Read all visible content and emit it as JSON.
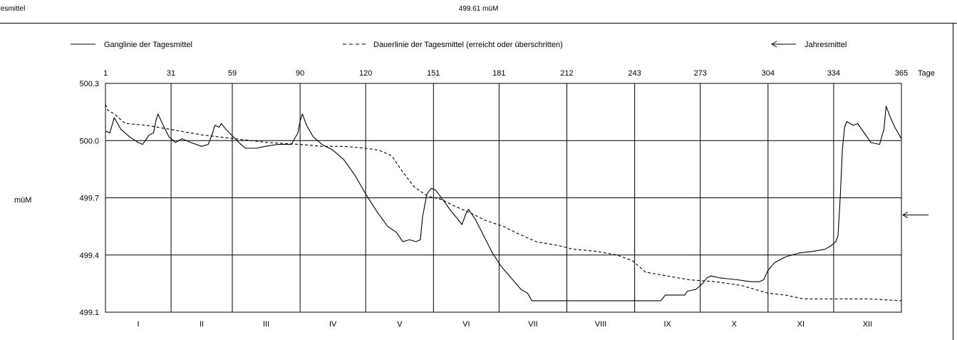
{
  "header": {
    "left_text": "hresmittel",
    "center_text": "499.61 müM"
  },
  "legend": {
    "solid_label": "Ganglinie der Tagesmittel",
    "dashed_label": "Dauerlinie der Tagesmittel (erreicht oder überschritten)",
    "arrow_label": "Jahresmittel"
  },
  "chart_data": {
    "type": "line",
    "ylabel": "müM",
    "x_unit_label": "Tage",
    "xlim": [
      1,
      365
    ],
    "ylim": [
      499.1,
      500.3
    ],
    "y_ticks": [
      499.1,
      499.4,
      499.7,
      500.0,
      500.3
    ],
    "y_tick_labels": [
      "499.1",
      "499.4",
      "499.7",
      "500.0",
      "500.3"
    ],
    "x_ticks": [
      1,
      31,
      59,
      90,
      120,
      151,
      181,
      212,
      243,
      273,
      304,
      334,
      365
    ],
    "x_tick_labels": [
      "1",
      "31",
      "59",
      "90",
      "120",
      "151",
      "181",
      "212",
      "243",
      "273",
      "304",
      "334",
      "365"
    ],
    "month_labels": [
      "I",
      "II",
      "III",
      "IV",
      "V",
      "VI",
      "VII",
      "VIII",
      "IX",
      "X",
      "XI",
      "XII"
    ],
    "grid": true,
    "annual_mean": 499.61,
    "series": [
      {
        "name": "Ganglinie der Tagesmittel",
        "style": "solid",
        "points": [
          [
            1,
            500.05
          ],
          [
            3,
            500.04
          ],
          [
            5,
            500.12
          ],
          [
            8,
            500.06
          ],
          [
            12,
            500.02
          ],
          [
            16,
            499.99
          ],
          [
            18,
            499.98
          ],
          [
            21,
            500.03
          ],
          [
            23,
            500.04
          ],
          [
            24,
            500.1
          ],
          [
            25,
            500.14
          ],
          [
            27,
            500.09
          ],
          [
            30,
            500.02
          ],
          [
            33,
            499.99
          ],
          [
            36,
            500.01
          ],
          [
            40,
            499.99
          ],
          [
            45,
            499.97
          ],
          [
            48,
            499.98
          ],
          [
            50,
            500.04
          ],
          [
            51,
            500.08
          ],
          [
            53,
            500.07
          ],
          [
            54,
            500.09
          ],
          [
            56,
            500.06
          ],
          [
            62,
            499.99
          ],
          [
            65,
            499.96
          ],
          [
            70,
            499.96
          ],
          [
            74,
            499.97
          ],
          [
            80,
            499.98
          ],
          [
            86,
            499.98
          ],
          [
            89,
            500.04
          ],
          [
            90,
            500.1
          ],
          [
            91,
            500.14
          ],
          [
            93,
            500.08
          ],
          [
            96,
            500.02
          ],
          [
            100,
            499.98
          ],
          [
            105,
            499.95
          ],
          [
            110,
            499.9
          ],
          [
            115,
            499.82
          ],
          [
            120,
            499.72
          ],
          [
            125,
            499.63
          ],
          [
            130,
            499.55
          ],
          [
            134,
            499.52
          ],
          [
            137,
            499.47
          ],
          [
            140,
            499.48
          ],
          [
            143,
            499.47
          ],
          [
            145,
            499.48
          ],
          [
            146,
            499.6
          ],
          [
            148,
            499.72
          ],
          [
            150,
            499.75
          ],
          [
            152,
            499.74
          ],
          [
            156,
            499.68
          ],
          [
            159,
            499.63
          ],
          [
            162,
            499.59
          ],
          [
            164,
            499.56
          ],
          [
            166,
            499.62
          ],
          [
            167,
            499.64
          ],
          [
            170,
            499.59
          ],
          [
            174,
            499.5
          ],
          [
            178,
            499.41
          ],
          [
            182,
            499.34
          ],
          [
            185,
            499.3
          ],
          [
            188,
            499.26
          ],
          [
            191,
            499.22
          ],
          [
            194,
            499.2
          ],
          [
            196,
            499.16
          ],
          [
            220,
            499.16
          ],
          [
            240,
            499.16
          ],
          [
            250,
            499.16
          ],
          [
            255,
            499.16
          ],
          [
            257,
            499.19
          ],
          [
            262,
            499.19
          ],
          [
            266,
            499.19
          ],
          [
            267,
            499.21
          ],
          [
            271,
            499.22
          ],
          [
            274,
            499.25
          ],
          [
            276,
            499.28
          ],
          [
            278,
            499.29
          ],
          [
            282,
            499.28
          ],
          [
            290,
            499.27
          ],
          [
            296,
            499.26
          ],
          [
            300,
            499.26
          ],
          [
            302,
            499.27
          ],
          [
            304,
            499.32
          ],
          [
            307,
            499.36
          ],
          [
            312,
            499.39
          ],
          [
            318,
            499.41
          ],
          [
            325,
            499.42
          ],
          [
            330,
            499.43
          ],
          [
            333,
            499.45
          ],
          [
            335,
            499.47
          ],
          [
            336,
            499.5
          ],
          [
            337,
            499.7
          ],
          [
            338,
            499.95
          ],
          [
            339,
            500.07
          ],
          [
            340,
            500.1
          ],
          [
            343,
            500.08
          ],
          [
            345,
            500.09
          ],
          [
            348,
            500.04
          ],
          [
            351,
            499.99
          ],
          [
            355,
            499.98
          ],
          [
            357,
            500.06
          ],
          [
            358,
            500.18
          ],
          [
            360,
            500.12
          ],
          [
            362,
            500.07
          ],
          [
            365,
            500.01
          ]
        ]
      },
      {
        "name": "Dauerlinie der Tagesmittel (erreicht oder überschritten)",
        "style": "dashed",
        "points": [
          [
            1,
            500.19
          ],
          [
            2,
            500.16
          ],
          [
            5,
            500.14
          ],
          [
            10,
            500.09
          ],
          [
            20,
            500.08
          ],
          [
            30,
            500.06
          ],
          [
            45,
            500.03
          ],
          [
            60,
            500.01
          ],
          [
            75,
            499.99
          ],
          [
            90,
            499.98
          ],
          [
            100,
            499.97
          ],
          [
            110,
            499.97
          ],
          [
            120,
            499.96
          ],
          [
            126,
            499.95
          ],
          [
            132,
            499.92
          ],
          [
            136,
            499.85
          ],
          [
            142,
            499.76
          ],
          [
            148,
            499.71
          ],
          [
            155,
            499.69
          ],
          [
            160,
            499.66
          ],
          [
            168,
            499.62
          ],
          [
            175,
            499.58
          ],
          [
            183,
            499.55
          ],
          [
            190,
            499.51
          ],
          [
            198,
            499.47
          ],
          [
            208,
            499.45
          ],
          [
            215,
            499.43
          ],
          [
            225,
            499.42
          ],
          [
            235,
            499.4
          ],
          [
            242,
            499.37
          ],
          [
            248,
            499.31
          ],
          [
            258,
            499.29
          ],
          [
            268,
            499.27
          ],
          [
            280,
            499.26
          ],
          [
            292,
            499.24
          ],
          [
            304,
            499.2
          ],
          [
            312,
            499.19
          ],
          [
            320,
            499.17
          ],
          [
            335,
            499.17
          ],
          [
            350,
            499.17
          ],
          [
            365,
            499.16
          ]
        ]
      }
    ]
  }
}
